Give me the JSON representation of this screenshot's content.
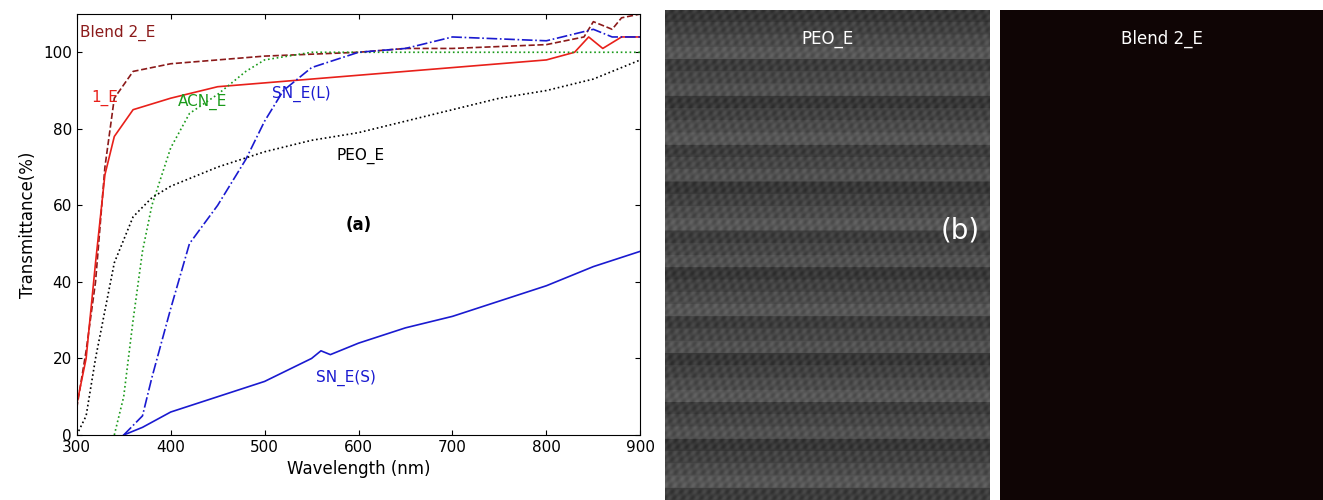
{
  "chart_data": {
    "type": "line",
    "label": "(a)",
    "x_label": "Wavelength (nm)",
    "y_label": "Transmittance(%)",
    "xlim": [
      300,
      900
    ],
    "xticks": [
      300,
      400,
      500,
      600,
      700,
      800,
      900
    ],
    "ylim": [
      0,
      110
    ],
    "yticks": [
      0,
      20,
      40,
      60,
      80,
      100
    ],
    "grid": false,
    "series": [
      {
        "name": "Blend 2_E",
        "color": "#8b1a1a",
        "line_style": "dashed",
        "label_xy": [
          304,
          104
        ],
        "x": [
          300,
          310,
          320,
          330,
          340,
          360,
          400,
          500,
          600,
          650,
          700,
          800,
          840,
          850,
          870,
          880,
          900
        ],
        "values": [
          7,
          22,
          40,
          70,
          88,
          95,
          97,
          99,
          100,
          101,
          101,
          102,
          104,
          108,
          106,
          109,
          110
        ]
      },
      {
        "name": "1_E",
        "color": "#e8201a",
        "line_style": "solid",
        "label_xy": [
          316,
          87
        ],
        "x": [
          300,
          310,
          320,
          330,
          340,
          360,
          400,
          450,
          500,
          550,
          600,
          650,
          700,
          750,
          800,
          830,
          845,
          860,
          880,
          900
        ],
        "values": [
          8,
          20,
          45,
          68,
          78,
          85,
          88,
          91,
          92,
          93,
          94,
          95,
          96,
          97,
          98,
          100,
          104,
          101,
          104,
          104
        ]
      },
      {
        "name": "ACN_E",
        "color": "#1a9a1a",
        "line_style": "dotted",
        "label_xy": [
          408,
          86
        ],
        "x": [
          340,
          350,
          360,
          370,
          380,
          400,
          420,
          450,
          480,
          500,
          550,
          600,
          700,
          800,
          900
        ],
        "values": [
          0,
          10,
          30,
          48,
          60,
          75,
          84,
          89,
          95,
          98,
          100,
          100,
          100,
          100,
          100
        ]
      },
      {
        "name": "SN_E(L)",
        "color": "#1a1ad0",
        "line_style": "dashdot",
        "label_xy": [
          508,
          88
        ],
        "x": [
          350,
          370,
          380,
          400,
          420,
          450,
          480,
          500,
          520,
          550,
          600,
          650,
          700,
          800,
          850,
          870,
          900
        ],
        "values": [
          0,
          5,
          15,
          33,
          50,
          60,
          72,
          82,
          90,
          96,
          100,
          101,
          104,
          103,
          106,
          104,
          104
        ]
      },
      {
        "name": "PEO_E",
        "color": "#000000",
        "line_style": "dotted",
        "label_xy": [
          577,
          72
        ],
        "x": [
          300,
          310,
          320,
          340,
          360,
          380,
          400,
          450,
          500,
          550,
          600,
          650,
          700,
          750,
          800,
          850,
          880,
          900
        ],
        "values": [
          0,
          5,
          20,
          45,
          57,
          62,
          65,
          70,
          74,
          77,
          79,
          82,
          85,
          88,
          90,
          93,
          96,
          98
        ]
      },
      {
        "name": "SN_E(S)",
        "color": "#1a1ad0",
        "line_style": "solid",
        "label_xy": [
          555,
          14
        ],
        "x": [
          350,
          370,
          400,
          450,
          500,
          550,
          560,
          570,
          600,
          650,
          700,
          750,
          800,
          850,
          900
        ],
        "values": [
          0,
          2,
          6,
          10,
          14,
          20,
          22,
          21,
          24,
          28,
          31,
          35,
          39,
          44,
          48
        ]
      }
    ]
  },
  "images": {
    "label": "(b)",
    "panels": [
      {
        "title": "PEO_E"
      },
      {
        "title": "Blend 2_E"
      }
    ]
  }
}
